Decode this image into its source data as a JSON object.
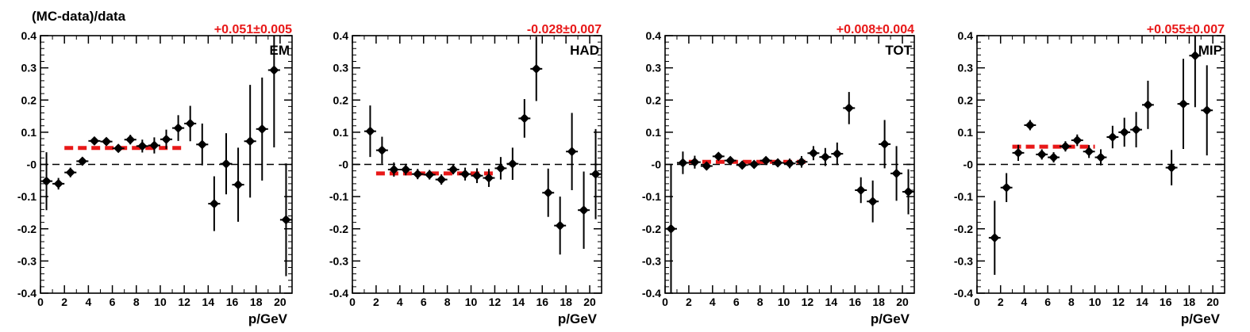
{
  "figure": {
    "ylabel": "(MC-data)/data",
    "xlabel": "p/GeV",
    "colors": {
      "axes": "#000000",
      "points": "#000000",
      "fit": "#e81818",
      "fit_text": "#e81818"
    }
  },
  "chart_data": [
    {
      "type": "scatter",
      "panel_label": "EM",
      "fit_label": "+0.051±0.005",
      "xlim": [
        0,
        21
      ],
      "ylim": [
        -0.4,
        0.4
      ],
      "xticks": [
        0,
        2,
        4,
        6,
        8,
        10,
        12,
        14,
        16,
        18,
        20
      ],
      "xtick_labels": [
        "0",
        "2",
        "4",
        "6",
        "8",
        "10",
        "12",
        "14",
        "16",
        "18",
        "20"
      ],
      "yticks": [
        -0.4,
        -0.3,
        -0.2,
        -0.1,
        0,
        0.1,
        0.2,
        0.3,
        0.4
      ],
      "ytick_labels": [
        "-0.4",
        "-0.3",
        "-0.2",
        "-0.1",
        "-0",
        "0.1",
        "0.2",
        "0.3",
        "0.4"
      ],
      "reference_line": 0,
      "fit": {
        "value": 0.051,
        "x_range": [
          2,
          12
        ]
      },
      "points": [
        {
          "x": 0.5,
          "y": -0.052,
          "yerr": 0.09
        },
        {
          "x": 1.5,
          "y": -0.06,
          "yerr": 0.018
        },
        {
          "x": 2.5,
          "y": -0.025,
          "yerr": 0.015
        },
        {
          "x": 3.5,
          "y": 0.01,
          "yerr": 0.012
        },
        {
          "x": 4.5,
          "y": 0.073,
          "yerr": 0.01
        },
        {
          "x": 5.5,
          "y": 0.071,
          "yerr": 0.01
        },
        {
          "x": 6.5,
          "y": 0.05,
          "yerr": 0.012
        },
        {
          "x": 7.5,
          "y": 0.077,
          "yerr": 0.015
        },
        {
          "x": 8.5,
          "y": 0.057,
          "yerr": 0.02
        },
        {
          "x": 9.5,
          "y": 0.059,
          "yerr": 0.025
        },
        {
          "x": 10.5,
          "y": 0.078,
          "yerr": 0.03
        },
        {
          "x": 11.5,
          "y": 0.113,
          "yerr": 0.04
        },
        {
          "x": 12.5,
          "y": 0.127,
          "yerr": 0.055
        },
        {
          "x": 13.5,
          "y": 0.062,
          "yerr": 0.065
        },
        {
          "x": 14.5,
          "y": -0.122,
          "yerr": 0.085
        },
        {
          "x": 15.5,
          "y": 0.002,
          "yerr": 0.095
        },
        {
          "x": 16.5,
          "y": -0.063,
          "yerr": 0.115
        },
        {
          "x": 17.5,
          "y": 0.072,
          "yerr": 0.175
        },
        {
          "x": 18.5,
          "y": 0.11,
          "yerr": 0.16
        },
        {
          "x": 19.5,
          "y": 0.293,
          "yerr": 0.24
        },
        {
          "x": 20.5,
          "y": -0.172,
          "yerr": 0.175
        }
      ]
    },
    {
      "type": "scatter",
      "panel_label": "HAD",
      "fit_label": "-0.028±0.007",
      "xlim": [
        0,
        21
      ],
      "ylim": [
        -0.4,
        0.4
      ],
      "xticks": [
        0,
        2,
        4,
        6,
        8,
        10,
        12,
        14,
        16,
        18,
        20
      ],
      "xtick_labels": [
        "0",
        "2",
        "4",
        "6",
        "8",
        "10",
        "12",
        "14",
        "16",
        "18",
        "20"
      ],
      "yticks": [
        -0.4,
        -0.3,
        -0.2,
        -0.1,
        0,
        0.1,
        0.2,
        0.3,
        0.4
      ],
      "ytick_labels": [
        "-0.4",
        "-0.3",
        "-0.2",
        "-0.1",
        "-0",
        "0.1",
        "0.2",
        "0.3",
        "0.4"
      ],
      "reference_line": 0,
      "fit": {
        "value": -0.028,
        "x_range": [
          2,
          12
        ]
      },
      "points": [
        {
          "x": 1.5,
          "y": 0.103,
          "yerr": 0.08
        },
        {
          "x": 2.5,
          "y": 0.044,
          "yerr": 0.042
        },
        {
          "x": 3.5,
          "y": -0.016,
          "yerr": 0.022
        },
        {
          "x": 4.5,
          "y": -0.016,
          "yerr": 0.018
        },
        {
          "x": 5.5,
          "y": -0.03,
          "yerr": 0.016
        },
        {
          "x": 6.5,
          "y": -0.032,
          "yerr": 0.015
        },
        {
          "x": 7.5,
          "y": -0.047,
          "yerr": 0.016
        },
        {
          "x": 8.5,
          "y": -0.016,
          "yerr": 0.015
        },
        {
          "x": 9.5,
          "y": -0.03,
          "yerr": 0.02
        },
        {
          "x": 10.5,
          "y": -0.035,
          "yerr": 0.023
        },
        {
          "x": 11.5,
          "y": -0.042,
          "yerr": 0.028
        },
        {
          "x": 12.5,
          "y": -0.012,
          "yerr": 0.035
        },
        {
          "x": 13.5,
          "y": 0.002,
          "yerr": 0.05
        },
        {
          "x": 14.5,
          "y": 0.143,
          "yerr": 0.06
        },
        {
          "x": 15.5,
          "y": 0.297,
          "yerr": 0.1
        },
        {
          "x": 16.5,
          "y": -0.088,
          "yerr": 0.075
        },
        {
          "x": 17.5,
          "y": -0.19,
          "yerr": 0.09
        },
        {
          "x": 18.5,
          "y": 0.04,
          "yerr": 0.12
        },
        {
          "x": 19.5,
          "y": -0.142,
          "yerr": 0.12
        },
        {
          "x": 20.5,
          "y": -0.03,
          "yerr": 0.14
        }
      ]
    },
    {
      "type": "scatter",
      "panel_label": "TOT",
      "fit_label": "+0.008±0.004",
      "xlim": [
        0,
        21
      ],
      "ylim": [
        -0.4,
        0.4
      ],
      "xticks": [
        0,
        2,
        4,
        6,
        8,
        10,
        12,
        14,
        16,
        18,
        20
      ],
      "xtick_labels": [
        "0",
        "2",
        "4",
        "6",
        "8",
        "10",
        "12",
        "14",
        "16",
        "18",
        "20"
      ],
      "yticks": [
        -0.4,
        -0.3,
        -0.2,
        -0.1,
        0,
        0.1,
        0.2,
        0.3,
        0.4
      ],
      "ytick_labels": [
        "-0.4",
        "-0.3",
        "-0.2",
        "-0.1",
        "-0",
        "0.1",
        "0.2",
        "0.3",
        "0.4"
      ],
      "reference_line": 0,
      "fit": {
        "value": 0.008,
        "x_range": [
          2,
          12
        ]
      },
      "points": [
        {
          "x": 0.5,
          "y": -0.2,
          "yerr": 0.2
        },
        {
          "x": 1.5,
          "y": 0.005,
          "yerr": 0.035
        },
        {
          "x": 2.5,
          "y": 0.007,
          "yerr": 0.02
        },
        {
          "x": 3.5,
          "y": -0.005,
          "yerr": 0.012
        },
        {
          "x": 4.5,
          "y": 0.025,
          "yerr": 0.008
        },
        {
          "x": 5.5,
          "y": 0.012,
          "yerr": 0.008
        },
        {
          "x": 6.5,
          "y": -0.002,
          "yerr": 0.008
        },
        {
          "x": 7.5,
          "y": 0.0,
          "yerr": 0.008
        },
        {
          "x": 8.5,
          "y": 0.012,
          "yerr": 0.01
        },
        {
          "x": 9.5,
          "y": 0.005,
          "yerr": 0.012
        },
        {
          "x": 10.5,
          "y": 0.003,
          "yerr": 0.015
        },
        {
          "x": 11.5,
          "y": 0.008,
          "yerr": 0.018
        },
        {
          "x": 12.5,
          "y": 0.035,
          "yerr": 0.022
        },
        {
          "x": 13.5,
          "y": 0.023,
          "yerr": 0.028
        },
        {
          "x": 14.5,
          "y": 0.033,
          "yerr": 0.035
        },
        {
          "x": 15.5,
          "y": 0.175,
          "yerr": 0.05
        },
        {
          "x": 16.5,
          "y": -0.08,
          "yerr": 0.04
        },
        {
          "x": 17.5,
          "y": -0.115,
          "yerr": 0.065
        },
        {
          "x": 18.5,
          "y": 0.063,
          "yerr": 0.075
        },
        {
          "x": 19.5,
          "y": -0.028,
          "yerr": 0.085
        },
        {
          "x": 20.5,
          "y": -0.085,
          "yerr": 0.07
        }
      ]
    },
    {
      "type": "scatter",
      "panel_label": "MIP",
      "fit_label": "+0.055±0.007",
      "xlim": [
        0,
        21
      ],
      "ylim": [
        -0.4,
        0.4
      ],
      "xticks": [
        0,
        2,
        4,
        6,
        8,
        10,
        12,
        14,
        16,
        18,
        20
      ],
      "xtick_labels": [
        "0",
        "2",
        "4",
        "6",
        "8",
        "10",
        "12",
        "14",
        "16",
        "18",
        "20"
      ],
      "yticks": [
        -0.4,
        -0.3,
        -0.2,
        -0.1,
        0,
        0.1,
        0.2,
        0.3,
        0.4
      ],
      "ytick_labels": [
        "-0.4",
        "-0.3",
        "-0.2",
        "-0.1",
        "-0",
        "0.1",
        "0.2",
        "0.3",
        "0.4"
      ],
      "reference_line": 0,
      "fit": {
        "value": 0.055,
        "x_range": [
          3,
          10
        ]
      },
      "points": [
        {
          "x": 1.5,
          "y": -0.228,
          "yerr": 0.115
        },
        {
          "x": 2.5,
          "y": -0.072,
          "yerr": 0.045
        },
        {
          "x": 3.5,
          "y": 0.036,
          "yerr": 0.025
        },
        {
          "x": 4.5,
          "y": 0.122,
          "yerr": 0.016
        },
        {
          "x": 5.5,
          "y": 0.031,
          "yerr": 0.016
        },
        {
          "x": 6.5,
          "y": 0.022,
          "yerr": 0.016
        },
        {
          "x": 7.5,
          "y": 0.056,
          "yerr": 0.016
        },
        {
          "x": 8.5,
          "y": 0.075,
          "yerr": 0.018
        },
        {
          "x": 9.5,
          "y": 0.04,
          "yerr": 0.02
        },
        {
          "x": 10.5,
          "y": 0.022,
          "yerr": 0.025
        },
        {
          "x": 11.5,
          "y": 0.085,
          "yerr": 0.035
        },
        {
          "x": 12.5,
          "y": 0.1,
          "yerr": 0.045
        },
        {
          "x": 13.5,
          "y": 0.108,
          "yerr": 0.055
        },
        {
          "x": 14.5,
          "y": 0.185,
          "yerr": 0.075
        },
        {
          "x": 16.5,
          "y": -0.01,
          "yerr": 0.055
        },
        {
          "x": 17.5,
          "y": 0.188,
          "yerr": 0.14
        },
        {
          "x": 18.5,
          "y": 0.338,
          "yerr": 0.16
        },
        {
          "x": 19.5,
          "y": 0.168,
          "yerr": 0.14
        }
      ]
    }
  ]
}
